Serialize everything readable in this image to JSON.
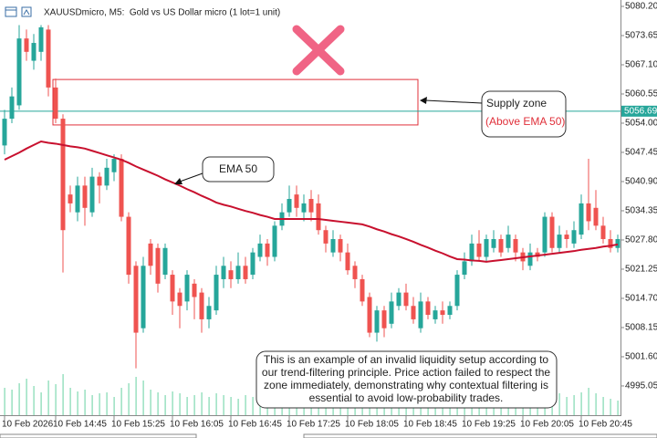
{
  "chart_data": {
    "type": "candlestick",
    "title": "XAUUSDmicro, M5:  Gold vs US Dollar micro (1 lot=1 unit)",
    "categories": [
      "10 Feb 2026",
      null,
      null,
      null,
      null,
      null,
      null,
      "10 Feb 14:45",
      null,
      null,
      null,
      null,
      null,
      null,
      null,
      "10 Feb 15:25",
      null,
      null,
      null,
      null,
      null,
      null,
      null,
      "10 Feb 16:05",
      null,
      null,
      null,
      null,
      null,
      null,
      null,
      "10 Feb 16:45",
      null,
      null,
      null,
      null,
      null,
      null,
      null,
      "10 Feb 17:25",
      null,
      null,
      null,
      null,
      null,
      null,
      null,
      "10 Feb 18:05",
      null,
      null,
      null,
      null,
      null,
      null,
      null,
      "10 Feb 18:45",
      null,
      null,
      null,
      null,
      null,
      null,
      null,
      "10 Feb 19:25",
      null,
      null,
      null,
      null,
      null,
      null,
      null,
      "10 Feb 20:05",
      null,
      null,
      null,
      null,
      null,
      null,
      null,
      "10 Feb 20:45",
      null,
      null,
      null,
      null,
      null
    ],
    "open": [
      5049,
      5055,
      5058,
      5073,
      5068,
      5070,
      5075,
      5062,
      5055,
      5038,
      5034,
      5040,
      5034,
      5042,
      5040,
      5043,
      5046,
      5033,
      5022,
      5008,
      5027,
      5026,
      5020,
      5020,
      5016,
      5014,
      5018,
      5016,
      5010,
      5012,
      5019,
      5021,
      5019,
      5022,
      5020,
      5024,
      5027,
      5024,
      5031,
      5034,
      5038,
      5034,
      5037,
      5036,
      5030,
      5025,
      5028,
      5025,
      5022,
      5019,
      5015,
      5007,
      5012,
      5009,
      5013,
      5016,
      5013,
      5008,
      5014,
      5010,
      5012,
      5011,
      5013,
      5020,
      5023,
      5027,
      5024,
      5026,
      5028,
      5026,
      5028,
      5025,
      5022,
      5025,
      5025,
      5033,
      5026,
      5029,
      5027,
      5029,
      5036,
      5035,
      5031,
      5028,
      5026
    ],
    "high": [
      5057,
      5062,
      5076,
      5075,
      5074,
      5076,
      5076,
      5064,
      5056,
      5040,
      5042,
      5042,
      5044,
      5043,
      5046,
      5047,
      5047,
      5034,
      5023,
      5024,
      5028,
      5027,
      5027,
      5021,
      5017,
      5021,
      5019,
      5017,
      5015,
      5022,
      5024,
      5023,
      5025,
      5024,
      5026,
      5029,
      5028,
      5032,
      5036,
      5040,
      5040,
      5038,
      5039,
      5038,
      5031,
      5030,
      5029,
      5027,
      5023,
      5020,
      5016,
      5013,
      5013,
      5016,
      5017,
      5018,
      5015,
      5016,
      5015,
      5013,
      5014,
      5014,
      5021,
      5025,
      5029,
      5030,
      5029,
      5030,
      5029,
      5031,
      5029,
      5026,
      5027,
      5026,
      5034,
      5034,
      5031,
      5030,
      5032,
      5038,
      5046,
      5039,
      5033,
      5030,
      5029
    ],
    "low": [
      5047,
      5054,
      5057,
      5068,
      5066,
      5068,
      5060,
      5054,
      5020.5,
      5034,
      5032,
      5031,
      5033,
      5036,
      5039,
      5041,
      5032,
      5018,
      4999,
      5007,
      5020,
      5016,
      5019,
      5011,
      5008,
      5012,
      5010,
      5007,
      5008,
      5011,
      5017,
      5017,
      5018,
      5018,
      5019,
      5023,
      5022,
      5023,
      5030,
      5033,
      5033,
      5032,
      5032,
      5029,
      5025,
      5024,
      5023,
      5020,
      5017,
      5013,
      5006,
      5005,
      5006,
      5008,
      5012,
      5012,
      5009,
      5007,
      5010,
      5009,
      5009,
      5010,
      5012,
      5019,
      5022,
      5023,
      5023,
      5025,
      5024,
      5025,
      5023,
      5021,
      5021,
      5023,
      5024,
      5025,
      5025,
      5026,
      5026,
      5028,
      5030,
      5030,
      5027,
      5025,
      5025
    ],
    "close": [
      5055,
      5060,
      5073,
      5070,
      5072,
      5075.5,
      5062,
      5055,
      5030,
      5036,
      5040,
      5035,
      5042,
      5040,
      5044,
      5046,
      5033,
      5020,
      5007,
      5022,
      5022,
      5018,
      5026,
      5014,
      5013,
      5020,
      5015,
      5010,
      5013,
      5020,
      5022,
      5019,
      5022,
      5019,
      5025,
      5027,
      5024,
      5031,
      5034,
      5037,
      5035,
      5036,
      5034,
      5030,
      5027,
      5028,
      5025,
      5021,
      5019,
      5014,
      5007,
      5012,
      5008,
      5014,
      5016,
      5013,
      5010,
      5014,
      5011,
      5012,
      5011,
      5013,
      5020,
      5023,
      5027,
      5024,
      5028,
      5028,
      5025,
      5029,
      5025,
      5023,
      5025,
      5024,
      5033,
      5026,
      5029,
      5028,
      5030,
      5036,
      5032,
      5031,
      5028,
      5026,
      5028
    ],
    "up_color": "#26a69a",
    "down_color": "#ef5350",
    "ema": {
      "name": "EMA 50",
      "color": "#c8102e",
      "values": [
        5045.8,
        5046.6,
        5047.4,
        5048.3,
        5049.1,
        5049.9,
        5049.6,
        5049.4,
        5049.1,
        5048.8,
        5048.6,
        5048.3,
        5047.8,
        5047.3,
        5046.8,
        5046.3,
        5045.8,
        5045.1,
        5044.3,
        5043.6,
        5042.9,
        5042.2,
        5041.4,
        5040.7,
        5040.0,
        5039.2,
        5038.5,
        5037.7,
        5037.0,
        5036.2,
        5035.7,
        5035.3,
        5034.8,
        5034.3,
        5033.9,
        5033.4,
        5033.0,
        5032.5,
        5032.5,
        5032.5,
        5032.5,
        5032.5,
        5032.5,
        5032.5,
        5032.3,
        5032.1,
        5031.9,
        5031.7,
        5031.5,
        5031.3,
        5030.8,
        5030.2,
        5029.7,
        5029.1,
        5028.6,
        5028.0,
        5027.4,
        5026.7,
        5026.1,
        5025.4,
        5024.8,
        5024.1,
        5023.5,
        5023.4,
        5023.2,
        5023.1,
        5022.9,
        5023.1,
        5023.3,
        5023.5,
        5023.7,
        5023.9,
        5024.1,
        5024.3,
        5024.5,
        5024.7,
        5024.9,
        5025.1,
        5025.3,
        5025.6,
        5025.8,
        5026.0,
        5026.3,
        5026.5,
        5026.8
      ]
    },
    "volume": {
      "color": "#7fd8b0",
      "values": [
        30,
        28,
        35,
        40,
        32,
        25,
        38,
        34,
        45,
        30,
        26,
        28,
        22,
        24,
        25,
        20,
        30,
        35,
        42,
        38,
        28,
        25,
        22,
        26,
        24,
        20,
        22,
        25,
        20,
        24,
        22,
        20,
        18,
        22,
        20,
        24,
        20,
        25,
        28,
        26,
        24,
        22,
        20,
        25,
        28,
        22,
        20,
        24,
        26,
        30,
        32,
        28,
        25,
        22,
        20,
        22,
        24,
        20,
        18,
        20,
        22,
        18,
        25,
        28,
        24,
        20,
        22,
        18,
        20,
        22,
        24,
        26,
        20,
        18,
        22,
        26,
        24,
        20,
        22,
        25,
        30,
        24,
        20,
        18,
        16
      ]
    },
    "current_price": {
      "value": 5056.69,
      "color": "#26a69a"
    },
    "supply_zone": {
      "label": "Supply zone",
      "note": "(Above EMA 50)",
      "high": 5063.8,
      "low": 5053.6,
      "color": "#e0303a"
    },
    "note_lines": [
      "This is an example of an invalid liquidity setup according to",
      "our trend-filtering principle. Price action failed to respect the",
      "zone immediately, demonstrating why contextual filtering is",
      "essential to avoid low-probability trades."
    ],
    "ylim": [
      4988.49,
      5081.63
    ],
    "yticks": [
      {
        "value": 5080.2,
        "label": "5080.20"
      },
      {
        "value": 5073.65,
        "label": "5073.65"
      },
      {
        "value": 5067.1,
        "label": "5067.10"
      },
      {
        "value": 5060.55,
        "label": "5060.55"
      },
      {
        "value": 5054.0,
        "label": "5054.00"
      },
      {
        "value": 5047.45,
        "label": "5047.45"
      },
      {
        "value": 5040.9,
        "label": "5040.90"
      },
      {
        "value": 5034.35,
        "label": "5034.35"
      },
      {
        "value": 5027.8,
        "label": "5027.80"
      },
      {
        "value": 5021.25,
        "label": "5021.25"
      },
      {
        "value": 5014.7,
        "label": "5014.70"
      },
      {
        "value": 5008.15,
        "label": "5008.15"
      },
      {
        "value": 5001.6,
        "label": "5001.60"
      },
      {
        "value": 4995.05,
        "label": "4995.05"
      }
    ]
  }
}
